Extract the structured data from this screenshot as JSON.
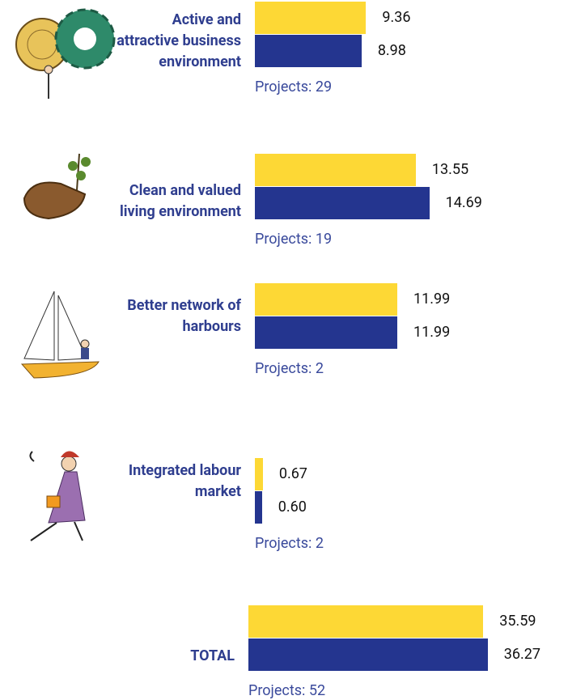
{
  "chart_data": [
    {
      "type": "bar",
      "orientation": "horizontal",
      "categories": [
        "Active and attractive business environment",
        "Clean and valued living environment",
        "Better network of harbours",
        "Integrated labour market"
      ],
      "series": [
        {
          "color": "#fdd835",
          "values": [
            9.36,
            13.55,
            11.99,
            0.67
          ],
          "value_labels": [
            "9.36",
            "13.55",
            "11.99",
            "0.67"
          ]
        },
        {
          "color": "#24358f",
          "values": [
            8.98,
            14.69,
            11.99,
            0.6
          ],
          "value_labels": [
            "8.98",
            "14.69",
            "11.99",
            "0.60"
          ]
        }
      ],
      "projects": [
        "Projects: 29",
        "Projects: 19",
        "Projects: 2",
        "Projects: 2"
      ],
      "xlim": [
        0,
        25
      ]
    },
    {
      "type": "bar",
      "orientation": "horizontal",
      "categories": [
        "TOTAL"
      ],
      "series": [
        {
          "color": "#fdd835",
          "values": [
            35.59
          ],
          "value_labels": [
            "35.59"
          ]
        },
        {
          "color": "#24358f",
          "values": [
            36.27
          ],
          "value_labels": [
            "36.27"
          ]
        }
      ],
      "projects": [
        "Projects: 52"
      ],
      "xlim": [
        0,
        45
      ]
    }
  ]
}
